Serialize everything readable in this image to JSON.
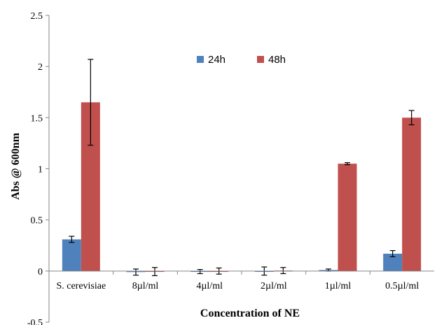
{
  "chart_data": {
    "type": "bar",
    "title": "",
    "xlabel": "Concentration of NE",
    "ylabel": "Abs @ 600nm",
    "ylim": [
      -0.5,
      2.5
    ],
    "yticks": [
      "-0.5",
      "0",
      "0.5",
      "1",
      "1.5",
      "2",
      "2.5"
    ],
    "grid": false,
    "legend_position": "top-center",
    "categories": [
      "S. cerevisiae",
      "8µl/ml",
      "4µl/ml",
      "2µl/ml",
      "1µl/ml",
      "0.5µl/ml"
    ],
    "series": [
      {
        "name": "24h",
        "color": "#4F81BD",
        "values": [
          0.31,
          -0.01,
          -0.005,
          0.0,
          0.01,
          0.17
        ],
        "errors": [
          0.03,
          0.03,
          0.02,
          0.04,
          0.01,
          0.03
        ]
      },
      {
        "name": "48h",
        "color": "#C0504D",
        "values": [
          1.65,
          -0.005,
          0.0,
          0.005,
          1.05,
          1.5
        ],
        "errors": [
          0.42,
          0.04,
          0.03,
          0.03,
          0.01,
          0.07
        ]
      }
    ]
  }
}
